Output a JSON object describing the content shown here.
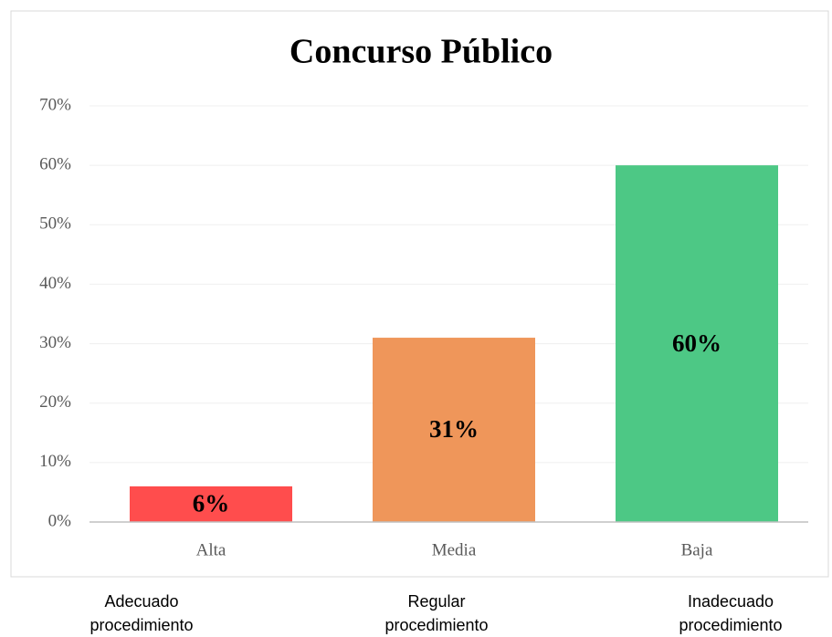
{
  "chart_data": {
    "type": "bar",
    "title": "Concurso Público",
    "categories": [
      "Alta",
      "Media",
      "Baja"
    ],
    "values": [
      6,
      31,
      60
    ],
    "value_labels": [
      "6%",
      "31%",
      "60%"
    ],
    "colors": [
      "#ff4d4d",
      "#ef965a",
      "#4dc885"
    ],
    "ylim": [
      0,
      70
    ],
    "yticks": [
      {
        "value": 0,
        "label": "0%"
      },
      {
        "value": 10,
        "label": "10%"
      },
      {
        "value": 20,
        "label": "20%"
      },
      {
        "value": 30,
        "label": "30%"
      },
      {
        "value": 40,
        "label": "40%"
      },
      {
        "value": 50,
        "label": "50%"
      },
      {
        "value": 60,
        "label": "60%"
      },
      {
        "value": 70,
        "label": "70%"
      }
    ],
    "grid": true,
    "annotations": [
      "Adecuado procedimiento",
      "Regular procedimiento",
      "Inadecuado procedimiento"
    ]
  }
}
